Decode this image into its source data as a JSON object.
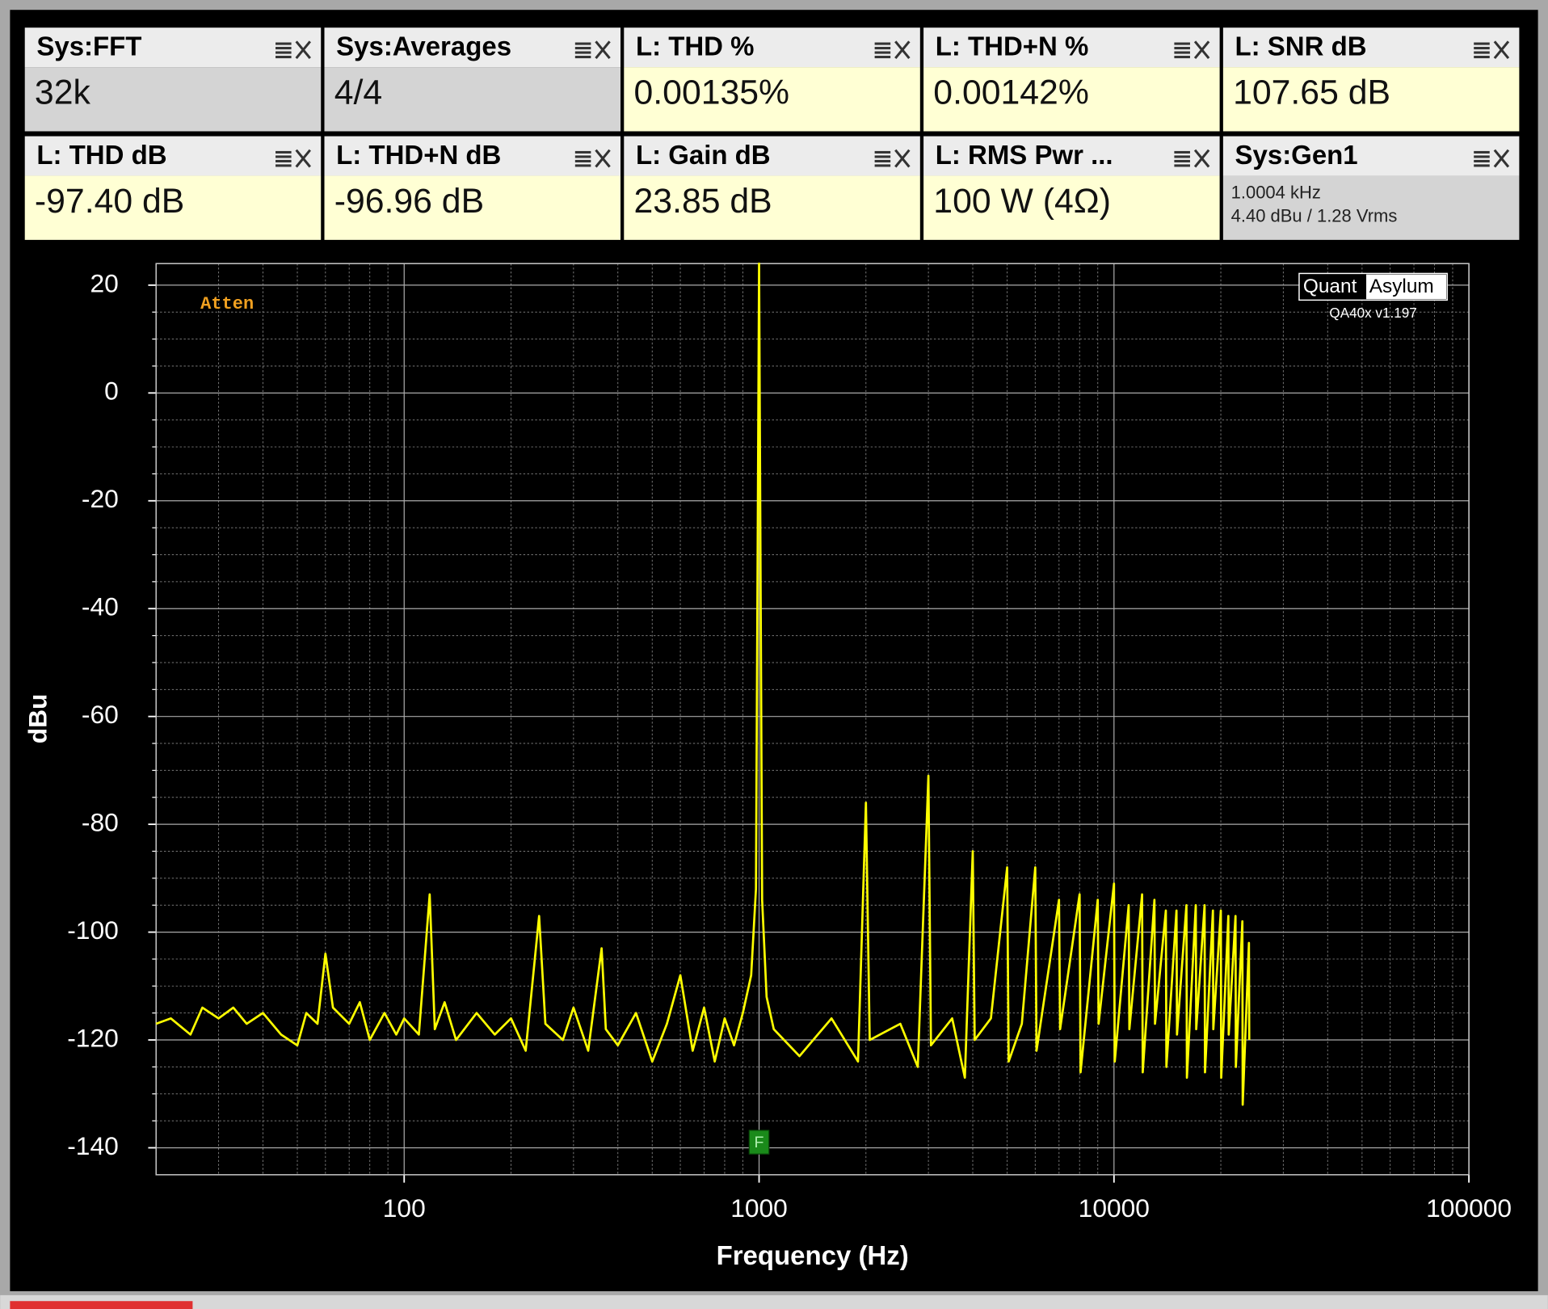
{
  "panels": [
    {
      "title": "Sys:FFT",
      "value": "32k",
      "color": "#d4d4d4"
    },
    {
      "title": "Sys:Averages",
      "value": "4/4",
      "color": "#d4d4d4"
    },
    {
      "title": "L: THD %",
      "value": "0.00135%",
      "color": "#ffffd4"
    },
    {
      "title": "L: THD+N %",
      "value": "0.00142%",
      "color": "#ffffd4"
    },
    {
      "title": "L: SNR dB",
      "value": "107.65 dB",
      "color": "#ffffd4"
    },
    {
      "title": "L: THD dB",
      "value": "-97.40 dB",
      "color": "#ffffd4"
    },
    {
      "title": "L: THD+N dB",
      "value": "-96.96 dB",
      "color": "#ffffd4"
    },
    {
      "title": "L: Gain dB",
      "value": "23.85 dB",
      "color": "#ffffd4"
    },
    {
      "title": "L: RMS Pwr ...",
      "value": "100 W (4Ω)",
      "color": "#ffffd4"
    },
    {
      "title": "Sys:Gen1",
      "lines": [
        "1.0004 kHz",
        "4.40 dBu  / 1.28 Vrms"
      ],
      "color": "#d4d4d4"
    }
  ],
  "chart_data": {
    "type": "line",
    "xlabel": "Frequency (Hz)",
    "ylabel": "dBu",
    "annotations": [
      "Atten",
      "F"
    ],
    "logo": [
      "Quant",
      "Asylum"
    ],
    "version": "QA40x v1.197",
    "xlog": true,
    "grid": true,
    "xlim": [
      20,
      100000
    ],
    "ylim": [
      -145,
      24
    ],
    "xticks": [
      100,
      1000,
      10000,
      100000
    ],
    "yticks": [
      20,
      0,
      -20,
      -40,
      -60,
      -80,
      -100,
      -120,
      -140
    ],
    "xminor": [
      20,
      30,
      40,
      50,
      60,
      70,
      80,
      90,
      200,
      300,
      400,
      500,
      600,
      700,
      800,
      900,
      2000,
      3000,
      4000,
      5000,
      6000,
      7000,
      8000,
      9000,
      20000,
      30000,
      40000,
      50000,
      60000,
      70000,
      80000,
      90000
    ],
    "yminor": [
      15,
      10,
      5,
      -5,
      -10,
      -15,
      -25,
      -30,
      -35,
      -45,
      -50,
      -55,
      -65,
      -70,
      -75,
      -85,
      -90,
      -95,
      -105,
      -110,
      -115,
      -125,
      -130,
      -135
    ],
    "series": [
      {
        "name": "L",
        "color": "#ffff00",
        "x": [
          20,
          22,
          25,
          27,
          30,
          33,
          36,
          40,
          45,
          50,
          53,
          57,
          60,
          63,
          70,
          75,
          80,
          88,
          95,
          100,
          110,
          118,
          122,
          130,
          140,
          160,
          180,
          200,
          220,
          240,
          250,
          280,
          300,
          330,
          360,
          370,
          400,
          450,
          500,
          550,
          600,
          650,
          700,
          750,
          800,
          850,
          900,
          950,
          980,
          1000,
          1020,
          1050,
          1100,
          1300,
          1600,
          1900,
          2000,
          2050,
          2500,
          2800,
          3000,
          3050,
          3500,
          3800,
          4000,
          4050,
          4500,
          5000,
          5050,
          5500,
          6000,
          6050,
          7000,
          7050,
          8000,
          8050,
          9000,
          9050,
          10000,
          10050,
          11000,
          11050,
          12000,
          12050,
          13000,
          13050,
          14000,
          14050,
          15000,
          15050,
          16000,
          16050,
          17000,
          17050,
          18000,
          18050,
          19000,
          19050,
          20000,
          20050,
          21000,
          21050,
          22000,
          22050,
          23000,
          23050,
          24000,
          24050
        ],
        "values": [
          -117,
          -116,
          -119,
          -114,
          -116,
          -114,
          -117,
          -115,
          -119,
          -121,
          -115,
          -117,
          -104,
          -114,
          -117,
          -113,
          -120,
          -115,
          -119,
          -116,
          -119,
          -93,
          -118,
          -113,
          -120,
          -115,
          -119,
          -116,
          -122,
          -97,
          -117,
          -120,
          -114,
          -122,
          -103,
          -118,
          -121,
          -115,
          -124,
          -117,
          -108,
          -122,
          -114,
          -124,
          -116,
          -121,
          -115,
          -108,
          -92,
          24,
          -94,
          -112,
          -118,
          -123,
          -116,
          -124,
          -76,
          -120,
          -117,
          -125,
          -71,
          -121,
          -116,
          -127,
          -85,
          -120,
          -116,
          -88,
          -124,
          -117,
          -88,
          -122,
          -94,
          -118,
          -93,
          -126,
          -94,
          -117,
          -91,
          -124,
          -95,
          -118,
          -93,
          -126,
          -94,
          -117,
          -96,
          -125,
          -96,
          -119,
          -95,
          -127,
          -95,
          -118,
          -95,
          -126,
          -96,
          -118,
          -96,
          -127,
          -97,
          -119,
          -97,
          -125,
          -98,
          -132,
          -102,
          -120
        ]
      }
    ]
  }
}
